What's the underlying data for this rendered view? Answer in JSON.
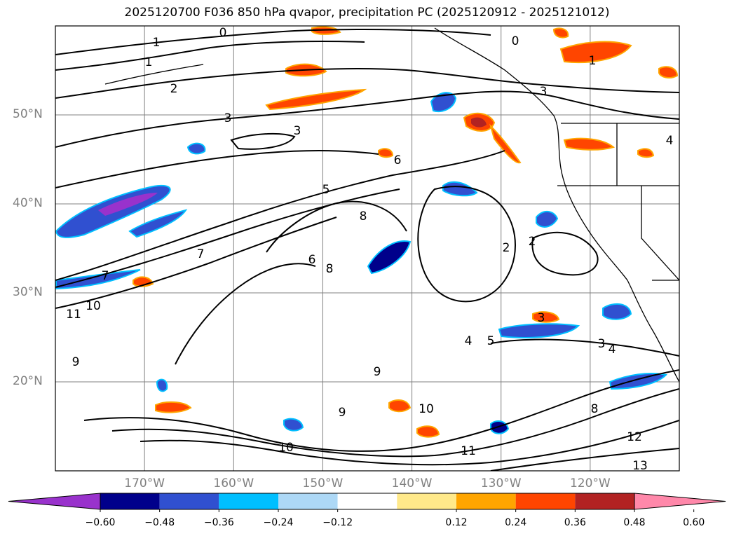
{
  "title": "2025120700 F036 850 hPa qvapor, precipitation PC (2025120912 - 2025121012)",
  "map": {
    "lat_labels": [
      {
        "text": "50°N",
        "lat": 50
      },
      {
        "text": "40°N",
        "lat": 40
      },
      {
        "text": "30°N",
        "lat": 30
      },
      {
        "text": "20°N",
        "lat": 20
      }
    ],
    "lon_labels": [
      {
        "text": "170°W",
        "lon": -170
      },
      {
        "text": "160°W",
        "lon": -160
      },
      {
        "text": "150°W",
        "lon": -150
      },
      {
        "text": "140°W",
        "lon": -140
      },
      {
        "text": "130°W",
        "lon": -130
      },
      {
        "text": "120°W",
        "lon": -120
      }
    ],
    "contour_labels": [
      "0",
      "0",
      "1",
      "1",
      "1",
      "2",
      "3",
      "3",
      "3",
      "4",
      "5",
      "6",
      "7",
      "7",
      "8",
      "8",
      "9",
      "9",
      "10",
      "10",
      "11",
      "11",
      "12",
      "13",
      "2",
      "2",
      "3",
      "3",
      "4",
      "5",
      "4",
      "6",
      "8",
      "9",
      "10"
    ],
    "grid_color": "#808080",
    "land_color": "#000000"
  },
  "colorbar": {
    "ticks": [
      "−0.60",
      "−0.48",
      "−0.36",
      "−0.24",
      "−0.12",
      "0.12",
      "0.24",
      "0.36",
      "0.48",
      "0.60"
    ],
    "colors": [
      "#9932cc",
      "#00008b",
      "#3050d0",
      "#00bfff",
      "#add8f6",
      "#ffffff",
      "#ffe98a",
      "#ffa500",
      "#ff4500",
      "#b22222",
      "#ff88aa"
    ]
  }
}
